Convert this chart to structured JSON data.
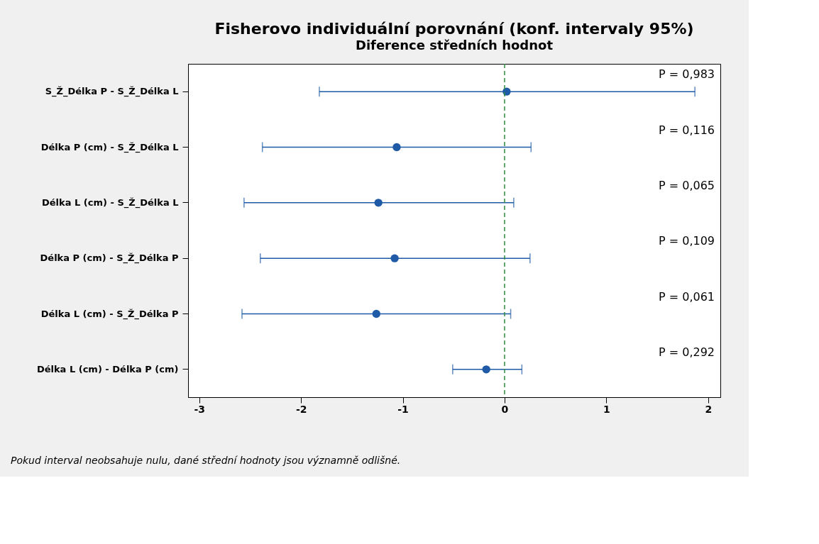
{
  "chart_data": {
    "type": "scatter",
    "orientation": "horizontal",
    "title": "Fisherovo individuální porovnání (konf. intervaly 95%)",
    "subtitle": "Diference středních hodnot",
    "categories": [
      "S_Ž_Délka P  - S_Ž_Délka L",
      "Délka P (cm) - S_Ž_Délka L",
      "Délka L (cm) - S_Ž_Délka L",
      "Délka P (cm) - S_Ž_Délka P",
      "Délka L (cm) - S_Ž_Délka P",
      "Délka L (cm) - Délka P (cm)"
    ],
    "series": [
      {
        "color": "#1f5aa6",
        "values": [
          0.02,
          -1.06,
          -1.24,
          -1.08,
          -1.26,
          -0.18
        ],
        "errors": [
          [
            -1.82,
            1.87
          ],
          [
            -2.38,
            0.26
          ],
          [
            -2.56,
            0.09
          ],
          [
            -2.4,
            0.25
          ],
          [
            -2.58,
            0.06
          ],
          [
            -0.51,
            0.17
          ]
        ]
      }
    ],
    "xlim": [
      -3.11,
      2.12
    ],
    "xticks": [
      -3,
      -2,
      -1,
      0,
      1,
      2
    ],
    "ref_lines": [
      {
        "axis": "x",
        "value": 0,
        "color": "#2e8b3e",
        "line_style": "dashed"
      }
    ],
    "annotations": [
      "P = 0,983",
      "P = 0,116",
      "P = 0,065",
      "P = 0,109",
      "P = 0,061",
      "P = 0,292",
      "Pokud interval neobsahuje nulu, dané střední hodnoty jsou významně odlišné."
    ],
    "marker": "circle",
    "grid": false
  }
}
